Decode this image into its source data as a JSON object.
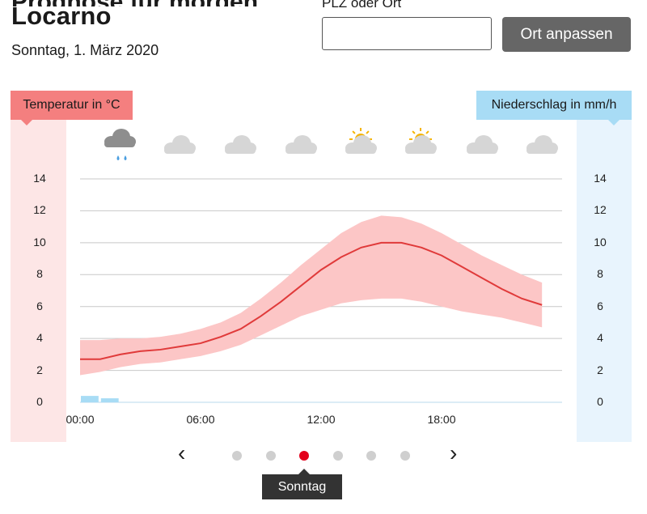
{
  "header": {
    "cut_title": "Prognose für morgen",
    "location": "Locarno",
    "date": "Sonntag, 1. März 2020",
    "plz_label": "PLZ oder Ort",
    "plz_value": "",
    "button_label": "Ort anpassen"
  },
  "axis_labels": {
    "temperature": "Temperatur in °C",
    "precipitation": "Niederschlag in mm/h"
  },
  "weather_icons": [
    {
      "time": "01:00",
      "icon": "cloud-rain-icon"
    },
    {
      "time": "04:00",
      "icon": "cloud-icon"
    },
    {
      "time": "07:00",
      "icon": "cloud-icon"
    },
    {
      "time": "10:00",
      "icon": "cloud-icon"
    },
    {
      "time": "13:00",
      "icon": "sun-cloud-icon"
    },
    {
      "time": "16:00",
      "icon": "sun-cloud-icon"
    },
    {
      "time": "19:00",
      "icon": "cloud-icon"
    },
    {
      "time": "22:00",
      "icon": "cloud-icon"
    }
  ],
  "colors": {
    "temp_line": "#e03a3a",
    "temp_range": "#fcc6c6",
    "precip_bar": "#a8dcf5",
    "active_dot": "#e3001b"
  },
  "chart_data": {
    "type": "line",
    "xlabel": "",
    "ylabel": "Temperatur in °C",
    "y2label": "Niederschlag in mm/h",
    "ylim": [
      0,
      14
    ],
    "y2lim": [
      0,
      14
    ],
    "yticks": [
      "0",
      "2",
      "4",
      "6",
      "8",
      "10",
      "12",
      "14"
    ],
    "y2ticks": [
      "0",
      "2",
      "4",
      "6",
      "8",
      "10",
      "12",
      "14"
    ],
    "xticks": [
      "00:00",
      "06:00",
      "12:00",
      "18:00"
    ],
    "xlim": [
      0,
      24
    ],
    "x": [
      0,
      1,
      2,
      3,
      4,
      5,
      6,
      7,
      8,
      9,
      10,
      11,
      12,
      13,
      14,
      15,
      16,
      17,
      18,
      19,
      20,
      21,
      22,
      23
    ],
    "series": [
      {
        "values": [
          2.7,
          2.7,
          3.0,
          3.2,
          3.3,
          3.5,
          3.7,
          4.1,
          4.6,
          5.4,
          6.3,
          7.3,
          8.3,
          9.1,
          9.7,
          10.0,
          10.0,
          9.7,
          9.2,
          8.5,
          7.8,
          7.1,
          6.5,
          6.1
        ]
      },
      {
        "values": [
          3.9,
          3.9,
          4.0,
          4.0,
          4.1,
          4.3,
          4.6,
          5.0,
          5.6,
          6.5,
          7.5,
          8.6,
          9.6,
          10.6,
          11.3,
          11.7,
          11.6,
          11.2,
          10.6,
          9.9,
          9.2,
          8.6,
          8.0,
          7.5
        ]
      },
      {
        "values": [
          1.7,
          1.9,
          2.2,
          2.4,
          2.5,
          2.7,
          2.9,
          3.2,
          3.6,
          4.2,
          4.8,
          5.4,
          5.8,
          6.2,
          6.4,
          6.5,
          6.5,
          6.3,
          6.0,
          5.7,
          5.5,
          5.3,
          5.0,
          4.7
        ]
      },
      {
        "values": [
          0.35,
          0.2,
          0,
          0,
          0,
          0,
          0,
          0,
          0,
          0,
          0,
          0,
          0,
          0,
          0,
          0,
          0,
          0,
          0,
          0,
          0,
          0,
          0,
          0
        ]
      }
    ],
    "grid": true
  },
  "pager": {
    "prev": "‹",
    "next": "›",
    "dot_count": 6,
    "active_index": 2,
    "tooltip": "Sonntag"
  }
}
